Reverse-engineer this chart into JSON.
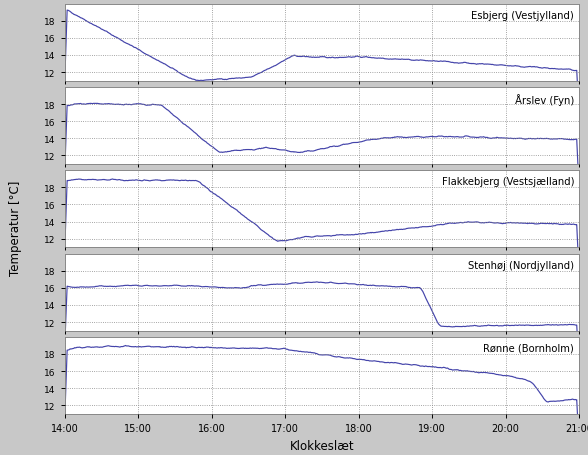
{
  "title": "",
  "xlabel": "Klokkeslæt",
  "ylabel": "Temperatur [°C]",
  "line_color": "#4444aa",
  "fig_bg_color": "#c8c8c8",
  "plot_bg_color": "#ffffff",
  "grid_color": "#888888",
  "locations": [
    "Esbjerg (Vestjylland)",
    "Årslev (Fyn)",
    "Flakkebjerg (Vestsjælland)",
    "Stenhøj (Nordjylland)",
    "Rønne (Bornholm)"
  ],
  "time_start": 14.0,
  "time_end": 21.0,
  "yticks": [
    12,
    14,
    16,
    18
  ],
  "xticks": [
    14,
    15,
    16,
    17,
    18,
    19,
    20,
    21
  ],
  "ylim": [
    11.0,
    20.0
  ]
}
